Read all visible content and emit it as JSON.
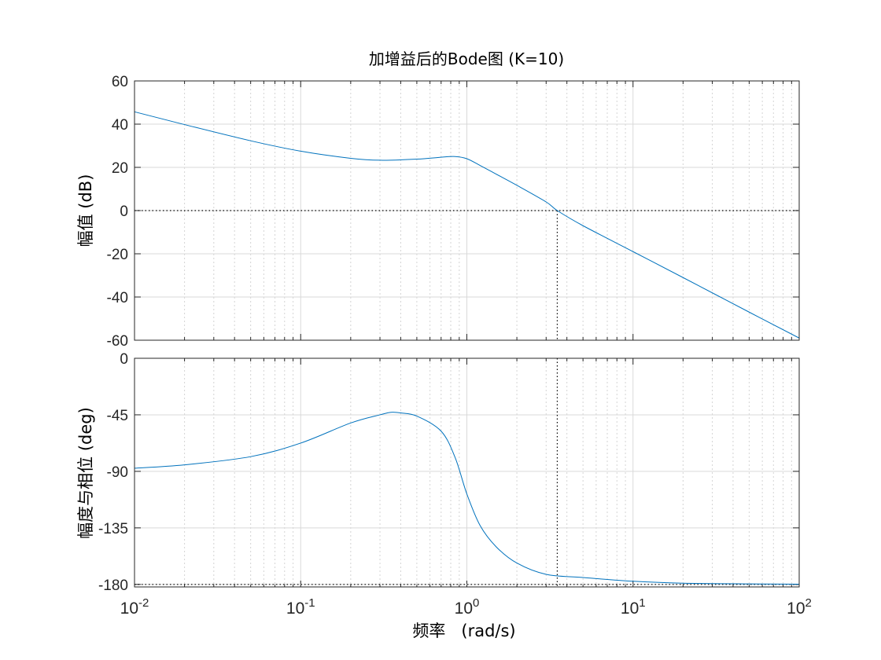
{
  "chart_data": [
    {
      "type": "line",
      "title": "加增益后的Bode图 (K=10)",
      "ylabel": "幅值 (dB)",
      "xscale": "log",
      "xlim": [
        0.01,
        100
      ],
      "ylim": [
        -60,
        60
      ],
      "yticks": [
        "60",
        "40",
        "20",
        "0",
        "-20",
        "-40",
        "-60"
      ],
      "grid": true,
      "series": [
        {
          "x": [
            0.01,
            0.02,
            0.05,
            0.1,
            0.2,
            0.3,
            0.5,
            0.7,
            0.85,
            1.0,
            1.2,
            1.5,
            2.0,
            3.0,
            3.5,
            5.0,
            10,
            20,
            50,
            100
          ],
          "y": [
            45.7,
            39.8,
            32.3,
            27.5,
            24.2,
            23.3,
            23.8,
            24.7,
            25.0,
            24.0,
            20.9,
            16.9,
            11.7,
            4.0,
            0.0,
            -7.0,
            -19.0,
            -31.0,
            -47.0,
            -59.0
          ]
        }
      ],
      "reference_lines": [
        {
          "y": 0,
          "style": "dotted"
        },
        {
          "x": 3.5,
          "style": "dotted"
        }
      ]
    },
    {
      "type": "line",
      "xlabel": "频率   (rad/s)",
      "ylabel": "幅度与相位 (deg)",
      "xscale": "log",
      "xlim": [
        0.01,
        100
      ],
      "ylim": [
        -182,
        0
      ],
      "yticks": [
        "0",
        "-45",
        "-90",
        "-135",
        "-180"
      ],
      "xticks": [
        {
          "base": "10",
          "exp": "-2"
        },
        {
          "base": "10",
          "exp": "-1"
        },
        {
          "base": "10",
          "exp": "0"
        },
        {
          "base": "10",
          "exp": "1"
        },
        {
          "base": "10",
          "exp": "2"
        }
      ],
      "grid": true,
      "series": [
        {
          "x": [
            0.01,
            0.02,
            0.05,
            0.1,
            0.2,
            0.3,
            0.35,
            0.4,
            0.5,
            0.7,
            0.85,
            1.0,
            1.2,
            1.5,
            2.0,
            3.0,
            5.0,
            10,
            20,
            50,
            100
          ],
          "y": [
            -87.5,
            -84.8,
            -78.3,
            -67.5,
            -51.5,
            -45.0,
            -43.0,
            -43.5,
            -46.0,
            -58.0,
            -79.0,
            -108.0,
            -133.0,
            -150.0,
            -163.0,
            -172.0,
            -174.5,
            -177.5,
            -179.0,
            -179.6,
            -179.8
          ]
        }
      ],
      "reference_lines": [
        {
          "y": -180,
          "style": "dotted"
        },
        {
          "x": 3.5,
          "style": "dotted"
        }
      ]
    }
  ]
}
